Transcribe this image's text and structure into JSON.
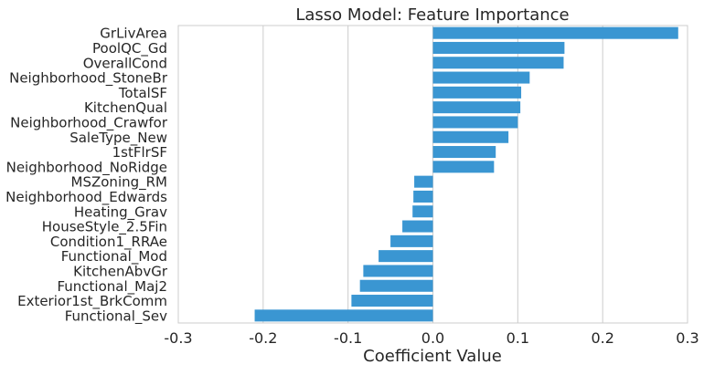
{
  "chart_data": {
    "type": "bar",
    "orientation": "horizontal",
    "title": "Lasso Model: Feature Importance",
    "xlabel": "Coefficient Value",
    "ylabel": "",
    "xlim": [
      -0.3,
      0.3
    ],
    "xticks": [
      -0.3,
      -0.2,
      -0.1,
      0.0,
      0.1,
      0.2,
      0.3
    ],
    "xtick_labels": [
      "-0.3",
      "-0.2",
      "-0.1",
      "0.0",
      "0.1",
      "0.2",
      "0.3"
    ],
    "grid": "vertical",
    "bar_color": "#3a96d2",
    "categories": [
      "GrLivArea",
      "PoolQC_Gd",
      "OverallCond",
      "Neighborhood_StoneBr",
      "TotalSF",
      "KitchenQual",
      "Neighborhood_Crawfor",
      "SaleType_New",
      "1stFlrSF",
      "Neighborhood_NoRidge",
      "MSZoning_RM",
      "Neighborhood_Edwards",
      "Heating_Grav",
      "HouseStyle_2.5Fin",
      "Condition1_RRAe",
      "Functional_Mod",
      "KitchenAbvGr",
      "Functional_Maj2",
      "Exterior1st_BrkComm",
      "Functional_Sev"
    ],
    "values": [
      0.289,
      0.155,
      0.154,
      0.114,
      0.104,
      0.103,
      0.1,
      0.089,
      0.074,
      0.072,
      -0.022,
      -0.023,
      -0.024,
      -0.036,
      -0.05,
      -0.064,
      -0.082,
      -0.086,
      -0.096,
      -0.21
    ]
  }
}
